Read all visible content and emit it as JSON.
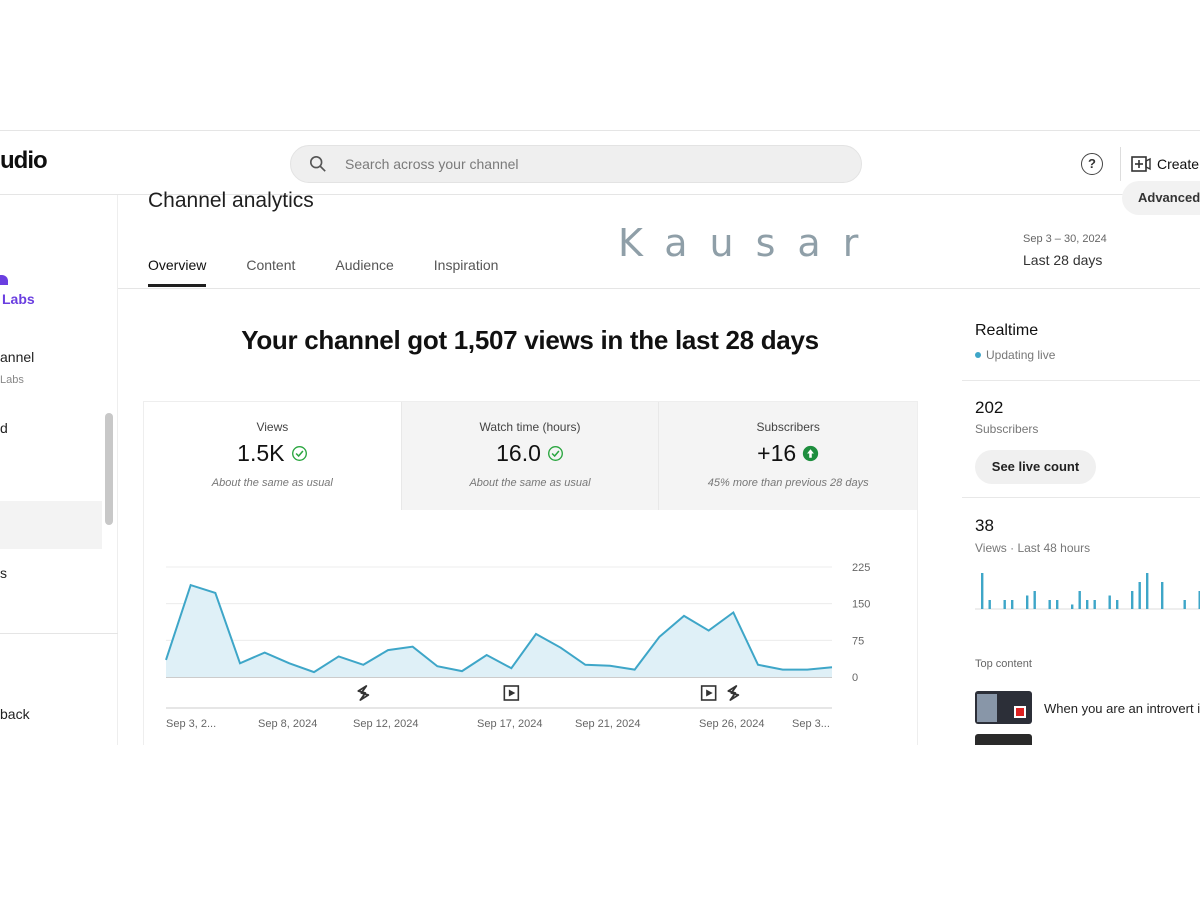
{
  "topbar": {
    "logo_fragment": "udio",
    "search_placeholder": "Search across your channel",
    "help_label": "?",
    "create_label": "Create"
  },
  "sidebar": {
    "channel_name_fragment": "Labs",
    "items": [
      {
        "label": "annel",
        "sub": "Labs"
      },
      {
        "label": "d"
      },
      {
        "label": "s"
      },
      {
        "label": "back"
      }
    ]
  },
  "main": {
    "title": "Channel analytics",
    "advanced_label": "Advanced",
    "tabs": [
      "Overview",
      "Content",
      "Audience",
      "Inspiration"
    ],
    "active_tab": "Overview",
    "watermark": "Kausar",
    "date_range": "Sep 3 – 30, 2024",
    "date_label": "Last 28 days",
    "headline": "Your channel got 1,507 views in the last 28 days"
  },
  "metrics": [
    {
      "name": "Views",
      "value": "1.5K",
      "note": "About the same as usual",
      "status": "check"
    },
    {
      "name": "Watch time (hours)",
      "value": "16.0",
      "note": "About the same as usual",
      "status": "check"
    },
    {
      "name": "Subscribers",
      "value": "+16",
      "note": "45% more than previous 28 days",
      "status": "up"
    }
  ],
  "chart_data": {
    "type": "area",
    "x_tick_labels": [
      "Sep 3, 2...",
      "Sep 8, 2024",
      "Sep 12, 2024",
      "Sep 17, 2024",
      "Sep 21, 2024",
      "Sep 26, 2024",
      "Sep 3..."
    ],
    "y_tick_labels": [
      "225",
      "150",
      "75",
      "0"
    ],
    "ylim": [
      0,
      225
    ],
    "series": [
      {
        "values": [
          35,
          188,
          172,
          28,
          50,
          28,
          10,
          42,
          25,
          55,
          62,
          22,
          12,
          45,
          18,
          88,
          60,
          25,
          23,
          15,
          82,
          125,
          95,
          132,
          25,
          15,
          15,
          20
        ]
      }
    ],
    "color": "#3ea6c8",
    "fill": "#dff0f7",
    "markers": [
      {
        "day": 8,
        "icon": "shorts-icon"
      },
      {
        "day": 14,
        "icon": "video-icon"
      },
      {
        "day": 22,
        "icon": "video-icon"
      },
      {
        "day": 23,
        "icon": "shorts-icon"
      }
    ]
  },
  "realtime": {
    "title": "Realtime",
    "status": "Updating live",
    "subscribers": "202",
    "subscribers_label": "Subscribers",
    "live_count_label": "See live count",
    "views": "38",
    "views_label": "Views · Last 48 hours",
    "bars": [
      8,
      2,
      0,
      2,
      2,
      0,
      3,
      4,
      0,
      2,
      2,
      0,
      1,
      4,
      2,
      2,
      0,
      3,
      2,
      0,
      4,
      6,
      8,
      0,
      6,
      0,
      0,
      2,
      0,
      4
    ],
    "top_content_label": "Top content",
    "top_content": [
      {
        "title": "When you are an introvert i..."
      }
    ],
    "accent": "#3ea6c8"
  }
}
